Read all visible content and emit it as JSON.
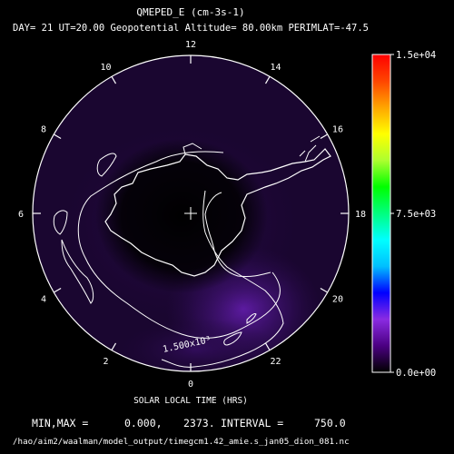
{
  "chart_data": {
    "type": "heatmap",
    "title": "QMEPED_E (cm-3s-1)",
    "subtitle": "DAY= 21 UT=20.00 Geopotential Altitude= 80.00km PERIMLAT=-47.5",
    "xlabel": "SOLAR LOCAL TIME (HRS)",
    "local_time_ticks": [
      "0",
      "2",
      "4",
      "6",
      "8",
      "10",
      "12",
      "14",
      "16",
      "18",
      "20",
      "22"
    ],
    "colorbar": {
      "min": 0.0,
      "max": 15000,
      "tick_labels": [
        "1.5e+04",
        "7.5e+03",
        "0.0e+00"
      ],
      "colors": [
        "#000000",
        "#4b0082",
        "#8a2be2",
        "#0000ff",
        "#00bfff",
        "#00ffff",
        "#00ff7f",
        "#00ff00",
        "#adff2f",
        "#ffff00",
        "#ffa500",
        "#ff4500",
        "#ff0000"
      ]
    },
    "contour_label": "1.500x10³",
    "contour_interval": 750.0,
    "footer": {
      "minmax_label": "MIN,MAX =",
      "min": "0.000,",
      "max": "2373.",
      "interval_label": "INTERVAL =",
      "interval": "750.0",
      "file_path": "/hao/aim2/waalman/model_output/timegcm1.42_amie.s_jan05_dion_081.nc"
    }
  }
}
